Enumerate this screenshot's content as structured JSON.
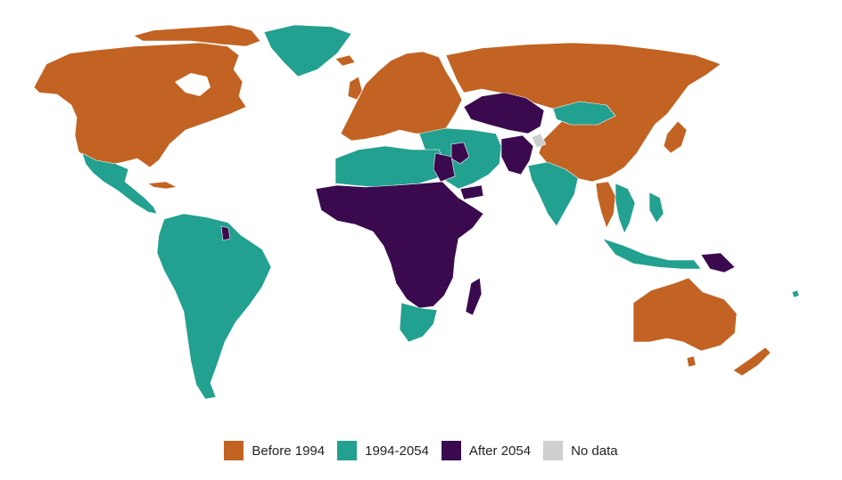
{
  "legend": {
    "items": [
      {
        "label": "Before 1994",
        "color": "#C26323"
      },
      {
        "label": "1994-2054",
        "color": "#22A090"
      },
      {
        "label": "After 2054",
        "color": "#3B0A4E"
      },
      {
        "label": "No data",
        "color": "#CFCFCF"
      }
    ]
  }
}
